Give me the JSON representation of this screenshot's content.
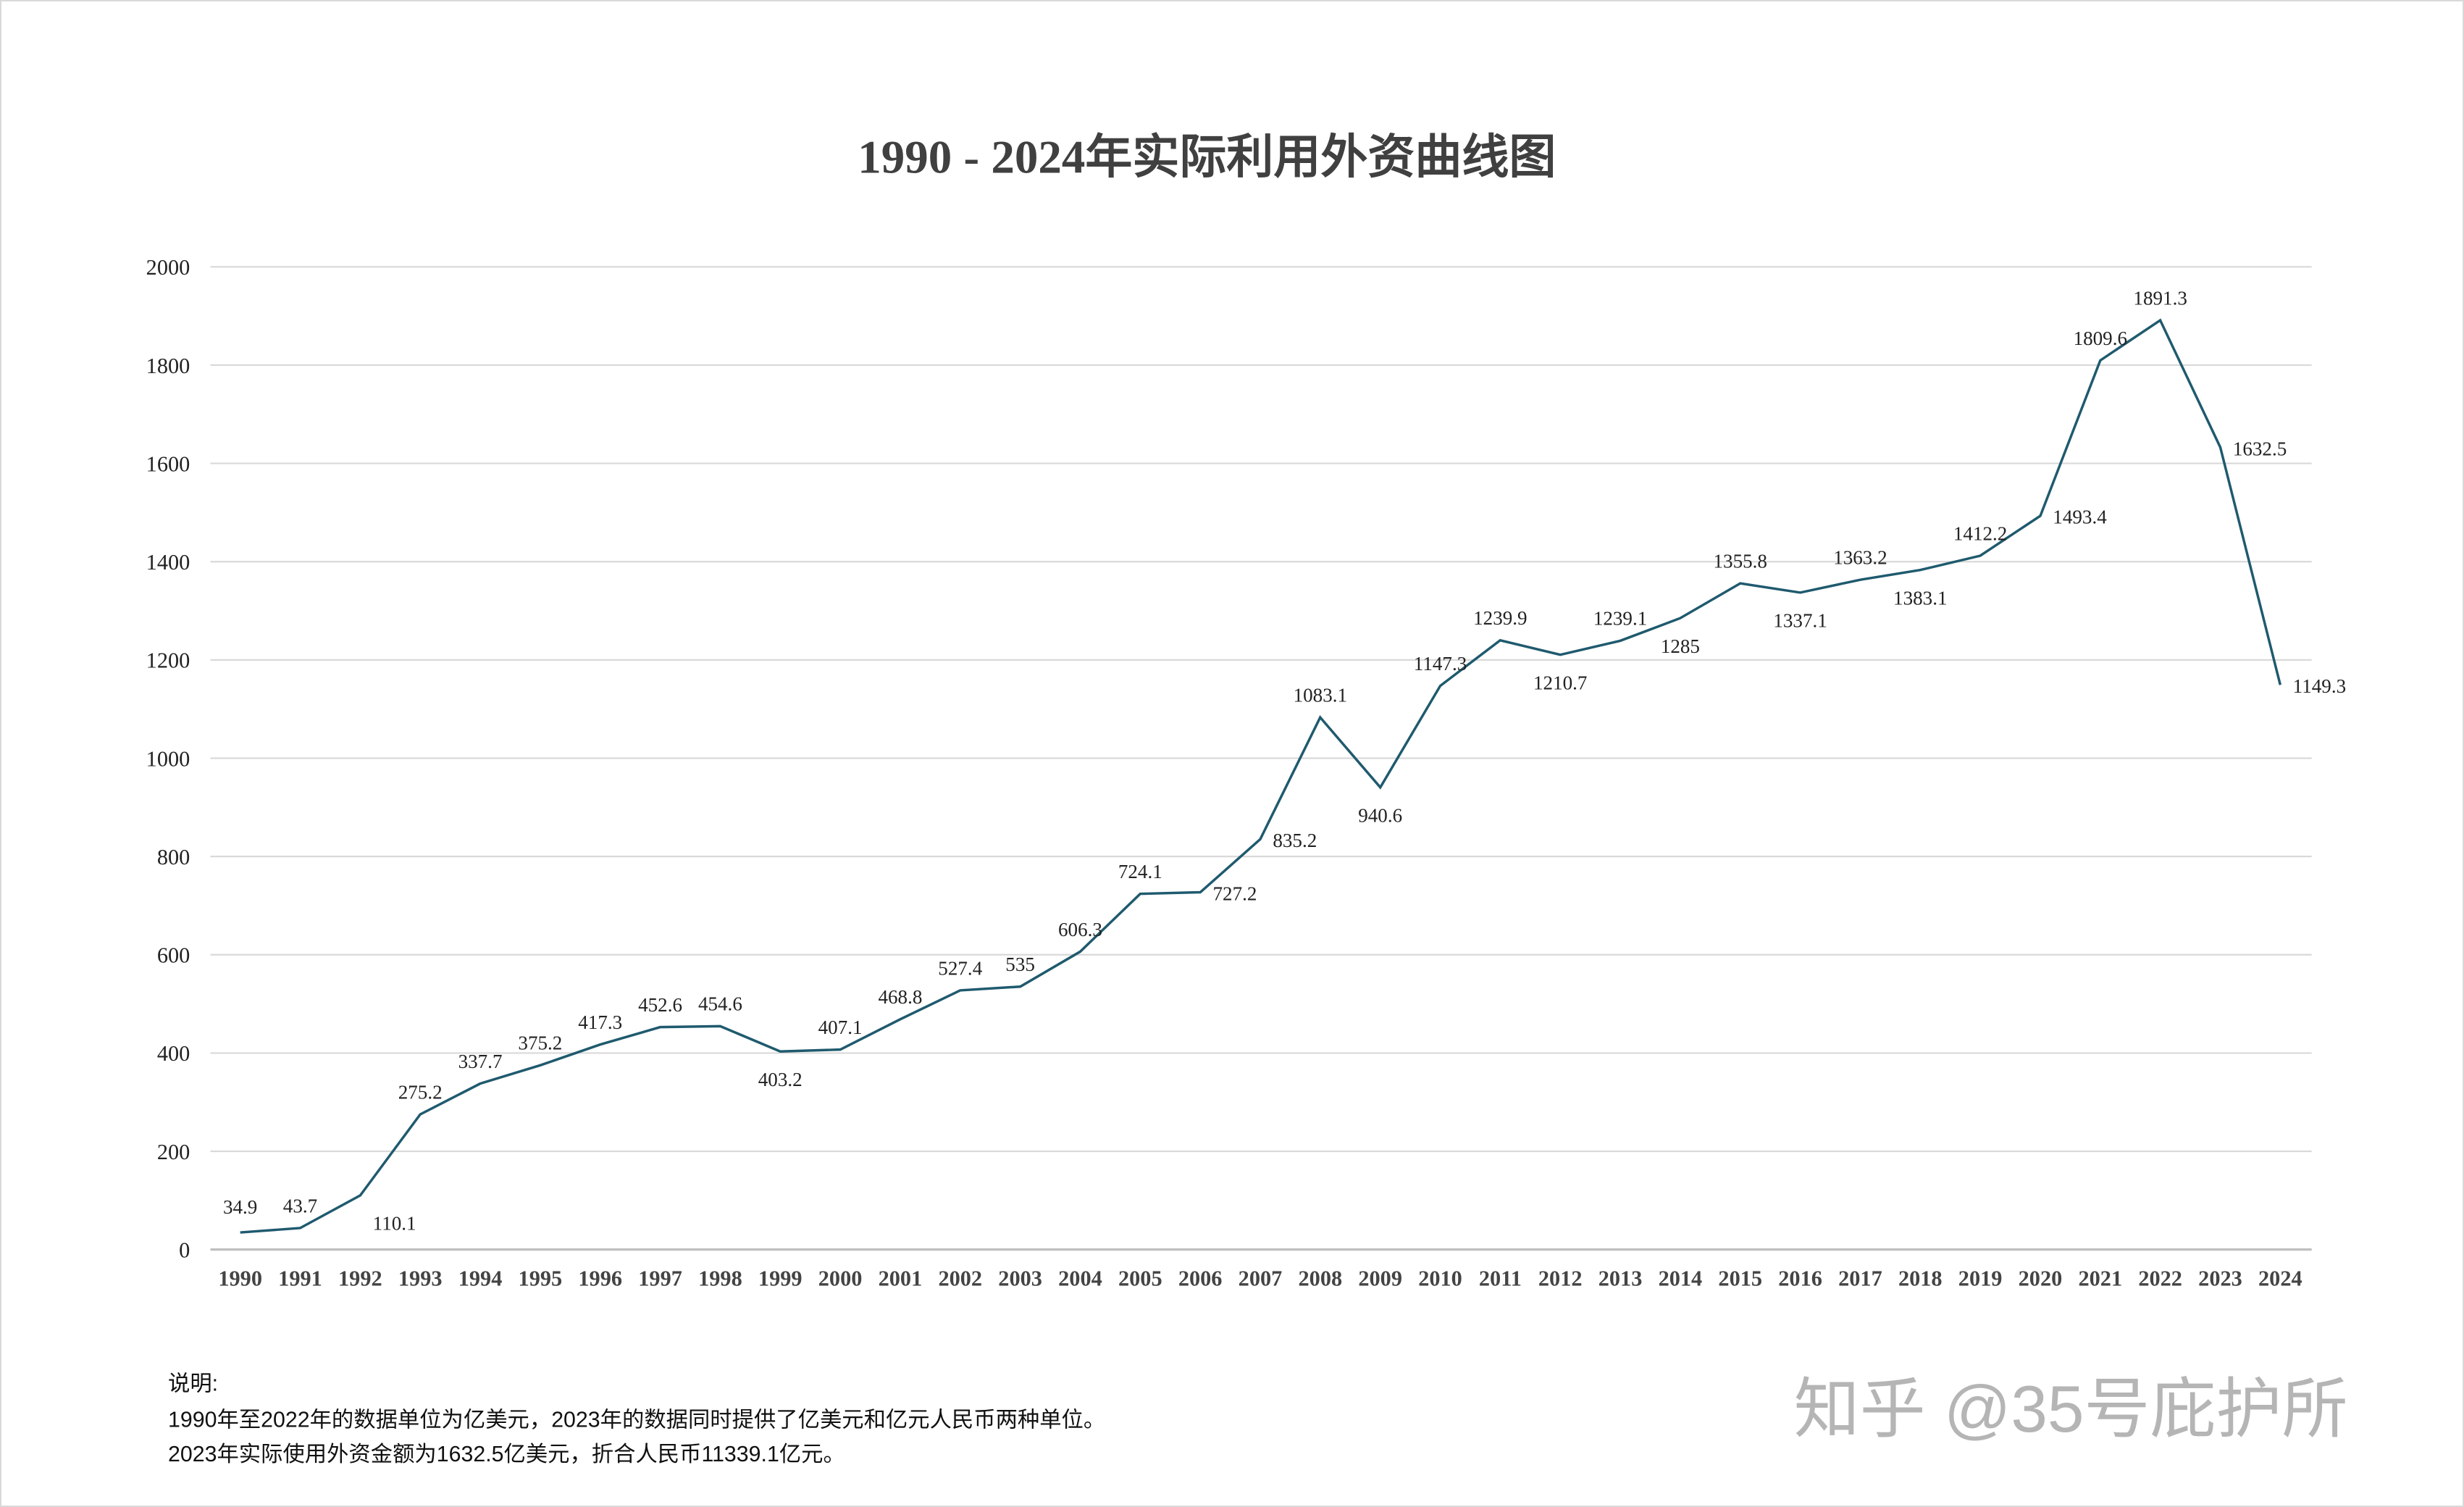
{
  "chart_data": {
    "type": "line",
    "title": "1990 - 2024年实际利用外资曲线图",
    "xlabel": "",
    "ylabel": "",
    "categories": [
      "1990",
      "1991",
      "1992",
      "1993",
      "1994",
      "1995",
      "1996",
      "1997",
      "1998",
      "1999",
      "2000",
      "2001",
      "2002",
      "2003",
      "2004",
      "2005",
      "2006",
      "2007",
      "2008",
      "2009",
      "2010",
      "2011",
      "2012",
      "2013",
      "2014",
      "2015",
      "2016",
      "2017",
      "2018",
      "2019",
      "2020",
      "2021",
      "2022",
      "2023",
      "2024"
    ],
    "values": [
      34.9,
      43.7,
      110.1,
      275.2,
      337.7,
      375.2,
      417.3,
      452.6,
      454.6,
      403.2,
      407.1,
      468.8,
      527.4,
      535,
      606.3,
      724.1,
      727.2,
      835.2,
      1083.1,
      940.6,
      1147.3,
      1239.9,
      1210.7,
      1239.1,
      1285,
      1355.8,
      1337.1,
      1363.2,
      1383.1,
      1412.2,
      1493.4,
      1809.6,
      1891.3,
      1632.5,
      1149.3
    ],
    "labels": [
      "34.9",
      "43.7",
      "110.1",
      "275.2",
      "337.7",
      "375.2",
      "417.3",
      "452.6",
      "454.6",
      "403.2",
      "407.1",
      "468.8",
      "527.4",
      "535",
      "606.3",
      "724.1",
      "727.2",
      "835.2",
      "1083.1",
      "940.6",
      "1147.3",
      "1239.9",
      "1210.7",
      "1239.1",
      "1285",
      "1355.8",
      "1337.1",
      "1363.2",
      "1383.1",
      "1412.2",
      "1493.4",
      "1809.6",
      "1891.3",
      "1632.5",
      "1149.3"
    ],
    "ylim": [
      0,
      2000
    ],
    "yticks": [
      "0",
      "200",
      "400",
      "600",
      "800",
      "1000",
      "1200",
      "1400",
      "1600",
      "1800",
      "2000"
    ],
    "grid": true,
    "legend": "none",
    "line_color": "#1f5a6e"
  },
  "notes": {
    "heading": "说明:",
    "line1": "1990年至2022年的数据单位为亿美元，2023年的数据同时提供了亿美元和亿元人民币两种单位。",
    "line2": "2023年实际使用外资金额为1632.5亿美元，折合人民币11339.1亿元。"
  },
  "watermark": "知乎 @35号庇护所"
}
